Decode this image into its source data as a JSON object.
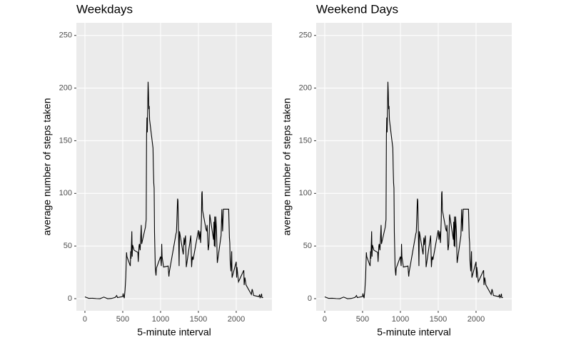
{
  "chart_data": [
    {
      "type": "line",
      "title": "Weekdays",
      "x_label": "5-minute interval",
      "y_label": "average number of steps taken",
      "xlim": [
        -113,
        2472
      ],
      "ylim": [
        -11.5,
        262
      ],
      "xticks": [
        0,
        500,
        1000,
        1500,
        2000
      ],
      "yticks": [
        0,
        50,
        100,
        150,
        200,
        250
      ],
      "grid": true,
      "series": [
        {
          "color": "#000000",
          "x": [
            0,
            50,
            100,
            150,
            200,
            250,
            300,
            350,
            400,
            420,
            430,
            500,
            505,
            510,
            520,
            530,
            540,
            550,
            555,
            600,
            605,
            610,
            620,
            625,
            630,
            650,
            700,
            705,
            715,
            720,
            730,
            745,
            750,
            800,
            810,
            815,
            820,
            825,
            835,
            840,
            845,
            850,
            855,
            900,
            905,
            910,
            915,
            920,
            930,
            935,
            940,
            945,
            1000,
            1010,
            1015,
            1020,
            1030,
            1040,
            1100,
            1110,
            1115,
            1200,
            1205,
            1210,
            1215,
            1225,
            1230,
            1240,
            1245,
            1250,
            1300,
            1310,
            1315,
            1330,
            1340,
            1350,
            1400,
            1410,
            1420,
            1430,
            1500,
            1510,
            1520,
            1530,
            1540,
            1545,
            1550,
            1555,
            1600,
            1610,
            1615,
            1620,
            1630,
            1640,
            1650,
            1700,
            1705,
            1710,
            1715,
            1720,
            1730,
            1740,
            1750,
            1800,
            1810,
            1820,
            1830,
            1845,
            1900,
            1910,
            1915,
            1920,
            1930,
            1940,
            1945,
            2000,
            2005,
            2010,
            2030,
            2100,
            2105,
            2115,
            2130,
            2200,
            2210,
            2215,
            2230,
            2300,
            2310,
            2315,
            2330,
            2335,
            2340,
            2355
          ],
          "values": [
            1.7,
            0.3,
            0.4,
            0.1,
            0,
            1.5,
            0,
            0.2,
            1.2,
            3,
            1,
            2,
            5,
            3,
            0.5,
            8,
            20,
            44,
            40,
            31,
            45,
            38,
            64,
            40,
            51,
            46,
            44,
            35,
            50,
            52,
            46,
            70,
            52,
            68,
            75,
            155,
            172,
            158,
            206,
            196,
            180,
            183,
            170,
            143,
            124,
            110,
            105,
            63,
            30,
            25,
            22,
            29,
            40,
            31,
            52,
            40,
            35,
            30,
            31,
            21,
            25,
            60,
            62,
            63,
            73,
            95,
            93,
            52,
            31,
            64,
            42,
            58,
            51,
            60,
            30,
            35,
            60,
            30,
            40,
            37,
            65,
            56,
            64,
            53,
            75,
            100,
            102,
            84,
            66,
            64,
            70,
            62,
            46,
            52,
            80,
            56,
            73,
            50,
            78,
            49,
            78,
            64,
            34,
            60,
            85,
            64,
            85,
            85,
            85,
            58,
            53,
            36,
            26,
            45,
            20,
            35,
            20,
            30,
            16,
            27,
            13,
            20,
            13,
            4,
            9,
            8,
            3,
            2,
            4,
            1,
            2.6,
            4.7,
            1,
            1.1
          ]
        }
      ]
    },
    {
      "type": "line",
      "title": "Weekend Days",
      "x_label": "5-minute interval",
      "y_label": "average number of steps taken",
      "xlim": [
        -113,
        2472
      ],
      "ylim": [
        -11.5,
        262
      ],
      "xticks": [
        0,
        500,
        1000,
        1500,
        2000
      ],
      "yticks": [
        0,
        50,
        100,
        150,
        200,
        250
      ],
      "grid": true,
      "series": [
        {
          "color": "#000000",
          "x": [
            0,
            50,
            100,
            150,
            200,
            250,
            300,
            350,
            400,
            420,
            430,
            500,
            505,
            510,
            520,
            530,
            540,
            550,
            555,
            600,
            605,
            610,
            620,
            625,
            630,
            650,
            700,
            705,
            715,
            720,
            730,
            745,
            750,
            800,
            810,
            815,
            820,
            825,
            835,
            840,
            845,
            850,
            855,
            900,
            905,
            910,
            915,
            920,
            930,
            935,
            940,
            945,
            1000,
            1010,
            1015,
            1020,
            1030,
            1040,
            1100,
            1110,
            1115,
            1200,
            1205,
            1210,
            1215,
            1225,
            1230,
            1240,
            1245,
            1250,
            1300,
            1310,
            1315,
            1330,
            1340,
            1350,
            1400,
            1410,
            1420,
            1430,
            1500,
            1510,
            1520,
            1530,
            1540,
            1545,
            1550,
            1555,
            1600,
            1610,
            1615,
            1620,
            1630,
            1640,
            1650,
            1700,
            1705,
            1710,
            1715,
            1720,
            1730,
            1740,
            1750,
            1800,
            1810,
            1820,
            1830,
            1845,
            1900,
            1910,
            1915,
            1920,
            1930,
            1940,
            1945,
            2000,
            2005,
            2010,
            2030,
            2100,
            2105,
            2115,
            2130,
            2200,
            2210,
            2215,
            2230,
            2300,
            2310,
            2315,
            2330,
            2335,
            2340,
            2355
          ],
          "values": [
            1.7,
            0.3,
            0.4,
            0.1,
            0,
            1.5,
            0,
            0.2,
            1.2,
            3,
            1,
            2,
            5,
            3,
            0.5,
            8,
            20,
            44,
            40,
            31,
            45,
            38,
            64,
            40,
            51,
            46,
            44,
            35,
            50,
            52,
            46,
            70,
            52,
            68,
            75,
            155,
            172,
            158,
            206,
            196,
            180,
            183,
            170,
            143,
            124,
            110,
            105,
            63,
            30,
            25,
            22,
            29,
            40,
            31,
            52,
            40,
            35,
            30,
            31,
            21,
            25,
            60,
            62,
            63,
            73,
            95,
            93,
            52,
            31,
            64,
            42,
            58,
            51,
            60,
            30,
            35,
            60,
            30,
            40,
            37,
            65,
            56,
            64,
            53,
            75,
            100,
            102,
            84,
            66,
            64,
            70,
            62,
            46,
            52,
            80,
            56,
            73,
            50,
            78,
            49,
            78,
            64,
            34,
            60,
            85,
            64,
            85,
            85,
            85,
            58,
            53,
            36,
            26,
            45,
            20,
            35,
            20,
            30,
            16,
            27,
            13,
            20,
            13,
            4,
            9,
            8,
            3,
            2,
            4,
            1,
            2.6,
            4.7,
            1,
            1.1
          ]
        }
      ]
    }
  ]
}
